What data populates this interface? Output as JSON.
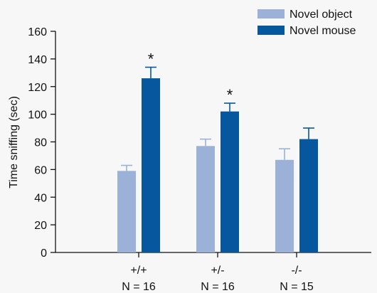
{
  "chart_data": {
    "type": "bar",
    "title": "",
    "xlabel": "",
    "ylabel": "Time sniffing (sec)",
    "ylim": [
      0,
      160
    ],
    "yticks": [
      0,
      20,
      40,
      60,
      80,
      100,
      120,
      140,
      160
    ],
    "categories": [
      "+/+",
      "+/-",
      "-/-"
    ],
    "category_sublabels": [
      "N = 16",
      "N = 16",
      "N = 15"
    ],
    "series": [
      {
        "name": "Novel object",
        "color": "#9bb1d8",
        "values": [
          59,
          77,
          67
        ],
        "errors": [
          4,
          5,
          8
        ]
      },
      {
        "name": "Novel mouse",
        "color": "#06579d",
        "values": [
          126,
          102,
          82
        ],
        "errors": [
          8,
          6,
          8
        ]
      }
    ],
    "significance_marker": "*",
    "significant": [
      [
        false,
        true
      ],
      [
        false,
        true
      ],
      [
        false,
        false
      ]
    ],
    "legend_position": "top-right",
    "grid": false
  }
}
